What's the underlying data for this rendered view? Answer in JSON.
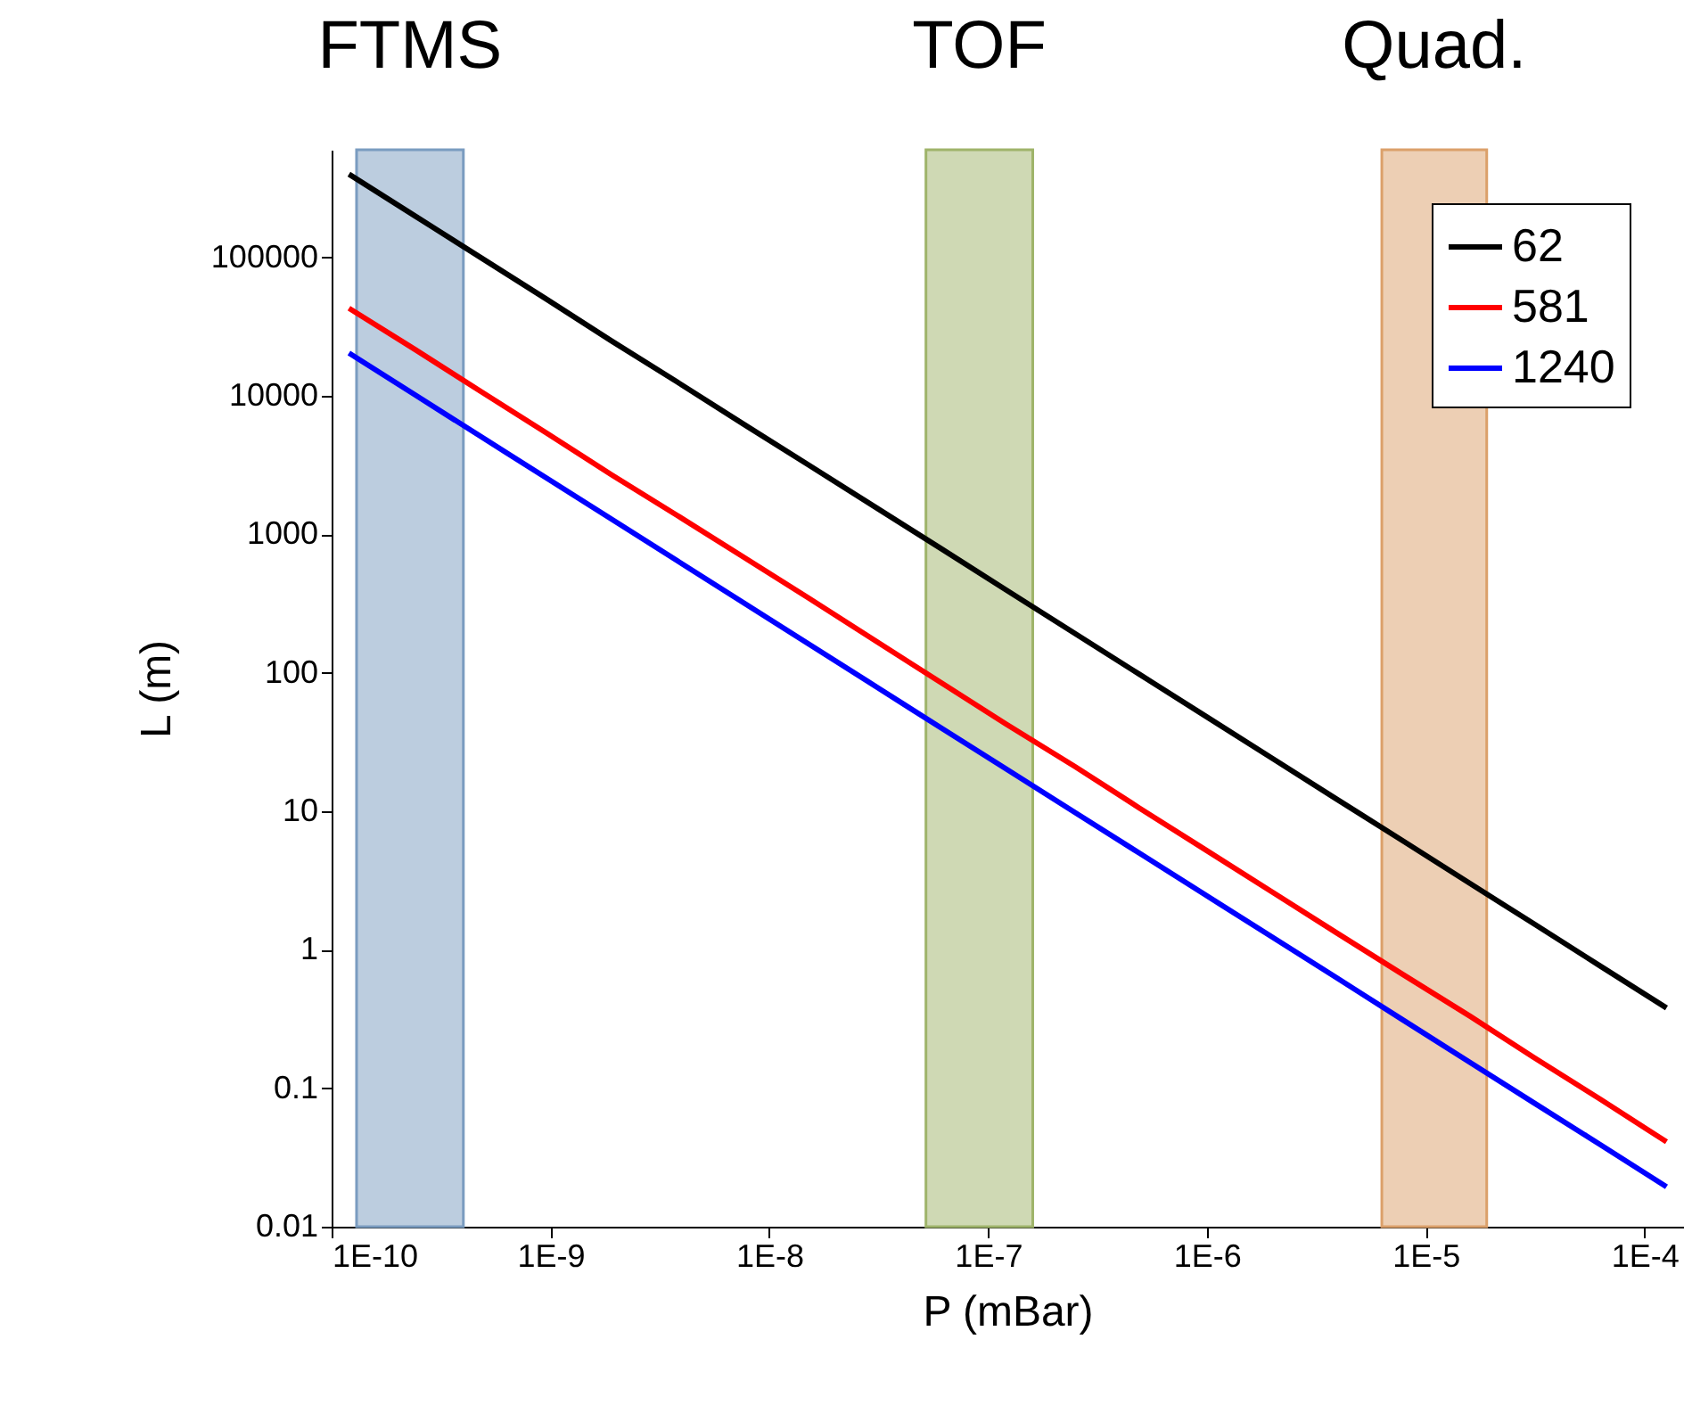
{
  "chart_data": {
    "type": "line",
    "xlabel": "P (mBar)",
    "ylabel": "L (m)",
    "log": "xy",
    "grid": false,
    "legend": "top right",
    "line_style": "solid",
    "marker": "none",
    "x": [
      1.2e-10,
      2.4e-10,
      4.8e-10,
      9.6e-10,
      1.9e-09,
      3.8e-09,
      7.7e-09,
      1.5e-08,
      3.1e-08,
      6.1e-08,
      1.2e-07,
      2.5e-07,
      4.9e-07,
      9.8e-07,
      2e-06,
      3.9e-06,
      7.9e-06,
      1.6e-05,
      3.1e-05,
      6.3e-05,
      0.000126
    ],
    "series": [
      {
        "name": "62",
        "color": "#000000",
        "values": [
          400000,
          200000,
          100000,
          50000,
          25000,
          12600,
          6200,
          3200,
          1550,
          790,
          400,
          192,
          98,
          49,
          24,
          12.3,
          6.1,
          3.0,
          1.55,
          0.76,
          0.38
        ]
      },
      {
        "name": "581",
        "color": "#ff0000",
        "values": [
          43000,
          21700,
          10800,
          5400,
          2700,
          1370,
          680,
          350,
          168,
          85,
          43,
          21,
          10.6,
          5.3,
          2.6,
          1.33,
          0.66,
          0.33,
          0.168,
          0.083,
          0.041
        ]
      },
      {
        "name": "1240",
        "color": "#0000ff",
        "values": [
          20400,
          10200,
          5100,
          2550,
          1290,
          645,
          318,
          163,
          79,
          40,
          20.4,
          9.8,
          5.0,
          2.5,
          1.23,
          0.63,
          0.31,
          0.153,
          0.079,
          0.039,
          0.0194
        ]
      }
    ],
    "xlim": [
      1e-10,
      0.00015
    ],
    "xticks": [
      {
        "value": 1e-10,
        "label": "1E-10"
      },
      {
        "value": 1e-09,
        "label": "1E-9"
      },
      {
        "value": 1e-08,
        "label": "1E-8"
      },
      {
        "value": 1e-07,
        "label": "1E-7"
      },
      {
        "value": 1e-06,
        "label": "1E-6"
      },
      {
        "value": 1e-05,
        "label": "1E-5"
      },
      {
        "value": 0.0001,
        "label": "1E-4"
      }
    ],
    "ylim": [
      0.01,
      600000
    ],
    "yticks": [
      0.01,
      0.1,
      1,
      10,
      100,
      1000,
      10000,
      100000
    ],
    "bands": [
      {
        "axis": "x",
        "from": 1.3e-10,
        "to": 4e-10,
        "label": "FTMS",
        "color": "#7a9cc0"
      },
      {
        "axis": "x",
        "from": 5.2e-08,
        "to": 1.6e-07,
        "label": "TOF",
        "color": "#9fb46a"
      },
      {
        "axis": "x",
        "from": 6.3e-06,
        "to": 1.9e-05,
        "label": "Quad.",
        "color": "#dba06a"
      }
    ]
  }
}
